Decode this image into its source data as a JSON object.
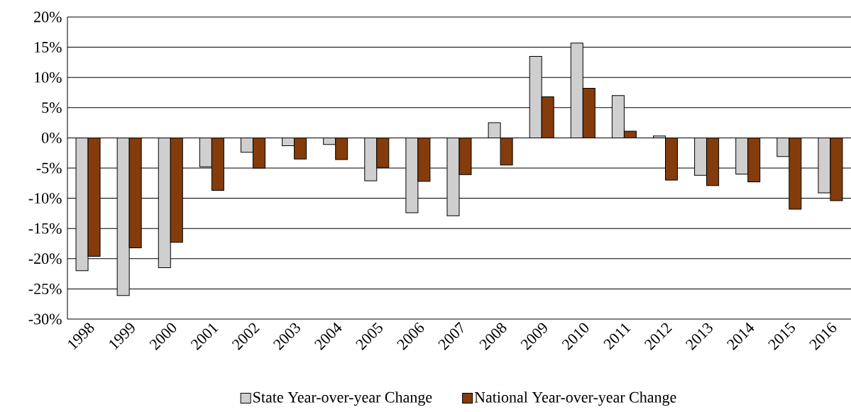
{
  "chart_data": {
    "type": "bar",
    "categories": [
      "1998",
      "1999",
      "2000",
      "2001",
      "2002",
      "2003",
      "2004",
      "2005",
      "2006",
      "2007",
      "2008",
      "2009",
      "2010",
      "2011",
      "2012",
      "2013",
      "2014",
      "2015",
      "2016"
    ],
    "series": [
      {
        "name": "State Year-over-year Change",
        "color": "#d0cfcf",
        "values": [
          -22.0,
          -26.1,
          -21.5,
          -4.8,
          -2.4,
          -1.3,
          -1.1,
          -7.1,
          -12.4,
          -12.9,
          2.5,
          13.5,
          15.7,
          7.0,
          0.3,
          -6.2,
          -6.0,
          -3.1,
          -9.1
        ]
      },
      {
        "name": "National Year-over-year Change",
        "color": "#843c0c",
        "values": [
          -19.6,
          -18.2,
          -17.3,
          -8.7,
          -5.0,
          -3.5,
          -3.6,
          -4.9,
          -7.2,
          -6.1,
          -4.5,
          6.8,
          8.2,
          1.1,
          -7.0,
          -7.9,
          -7.3,
          -11.8,
          -10.4
        ]
      }
    ],
    "ylim": [
      -30,
      20
    ],
    "yticks": [
      {
        "value": -30,
        "label": "-30%"
      },
      {
        "value": -25,
        "label": "-25%"
      },
      {
        "value": -20,
        "label": "-20%"
      },
      {
        "value": -15,
        "label": "-15%"
      },
      {
        "value": -10,
        "label": "-10%"
      },
      {
        "value": -5,
        "label": "-5%"
      },
      {
        "value": 0,
        "label": "0%"
      },
      {
        "value": 5,
        "label": "5%"
      },
      {
        "value": 10,
        "label": "10%"
      },
      {
        "value": 15,
        "label": "15%"
      },
      {
        "value": 20,
        "label": "20%"
      }
    ],
    "grid": "y",
    "legend": "bottom"
  }
}
